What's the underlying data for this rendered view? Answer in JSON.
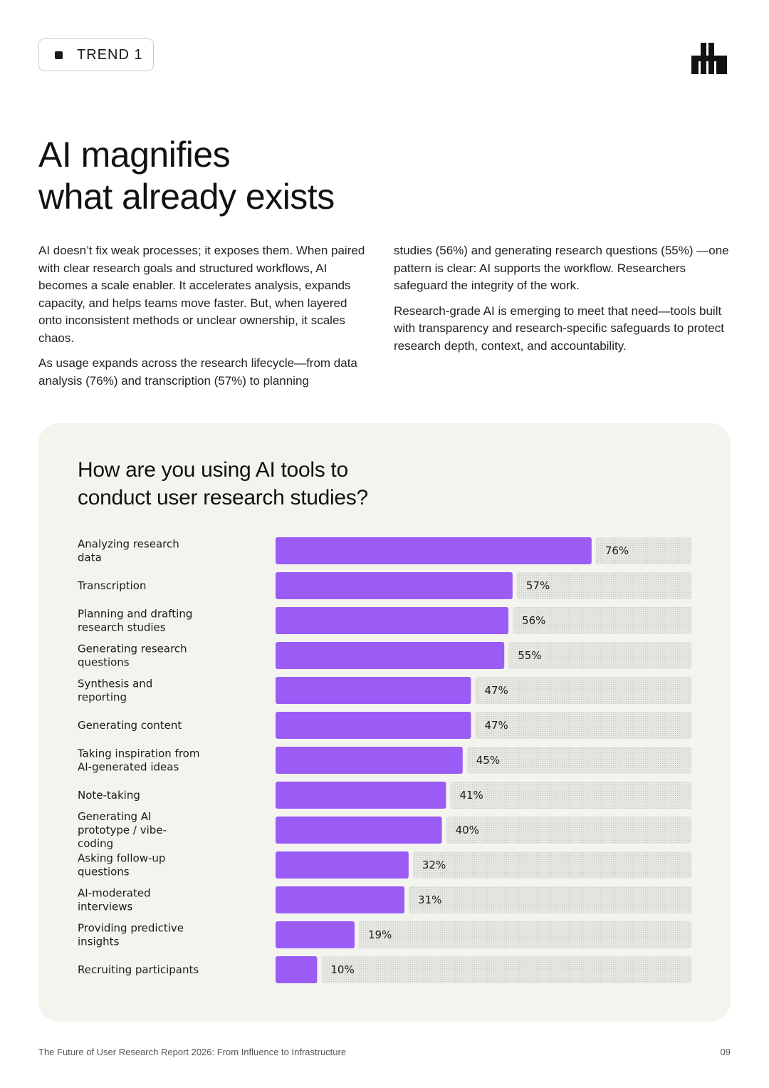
{
  "header": {
    "trend_label": "TREND 1"
  },
  "title": {
    "line1": "AI magnifies",
    "line2": "what already exists"
  },
  "body": {
    "left": [
      "AI doesn’t fix weak processes; it exposes them. When paired with clear research goals and structured workflows, AI becomes a scale enabler. It accelerates analysis, expands capacity, and helps teams move faster. But, when layered onto inconsistent methods or unclear ownership, it scales chaos.",
      "As usage expands across the research lifecycle—from data analysis (76%) and transcription (57%) to planning"
    ],
    "right": [
      "studies (56%) and generating research questions (55%) —one pattern is clear: AI supports the workflow. Researchers safeguard the integrity of the work.",
      "Research-grade AI is emerging to meet that need—tools built with transparency and research-specific safeguards to protect research depth, context, and accountability."
    ]
  },
  "chart_data": {
    "type": "bar",
    "orientation": "horizontal",
    "title_lines": [
      "How are you using AI tools to",
      "conduct user research studies?"
    ],
    "categories": [
      [
        "Analyzing research",
        "data"
      ],
      [
        "Transcription"
      ],
      [
        "Planning and drafting",
        "research studies"
      ],
      [
        "Generating research",
        "questions"
      ],
      [
        "Synthesis and",
        "reporting"
      ],
      [
        "Generating content"
      ],
      [
        "Taking inspiration from",
        "AI-generated ideas"
      ],
      [
        "Note-taking"
      ],
      [
        "Generating AI",
        "prototype / vibe-",
        "coding"
      ],
      [
        "Asking follow-up",
        "questions"
      ],
      [
        "AI-moderated",
        "interviews"
      ],
      [
        "Providing predictive",
        "insights"
      ],
      [
        "Recruiting participants"
      ]
    ],
    "values": [
      76,
      57,
      56,
      55,
      47,
      47,
      45,
      41,
      40,
      32,
      31,
      19,
      10
    ],
    "value_labels": [
      "76%",
      "57%",
      "56%",
      "55%",
      "47%",
      "47%",
      "45%",
      "41%",
      "40%",
      "32%",
      "31%",
      "19%",
      "10%"
    ],
    "xlim": [
      0,
      100
    ],
    "unit": "%",
    "colors": {
      "bar": "#9b5cf6",
      "track": "#e4e4e0",
      "track_dot": "#c9c9c4"
    }
  },
  "footer": {
    "text": "The Future of User Research Report 2026: From Influence to Infrastructure",
    "page_number": "09"
  }
}
